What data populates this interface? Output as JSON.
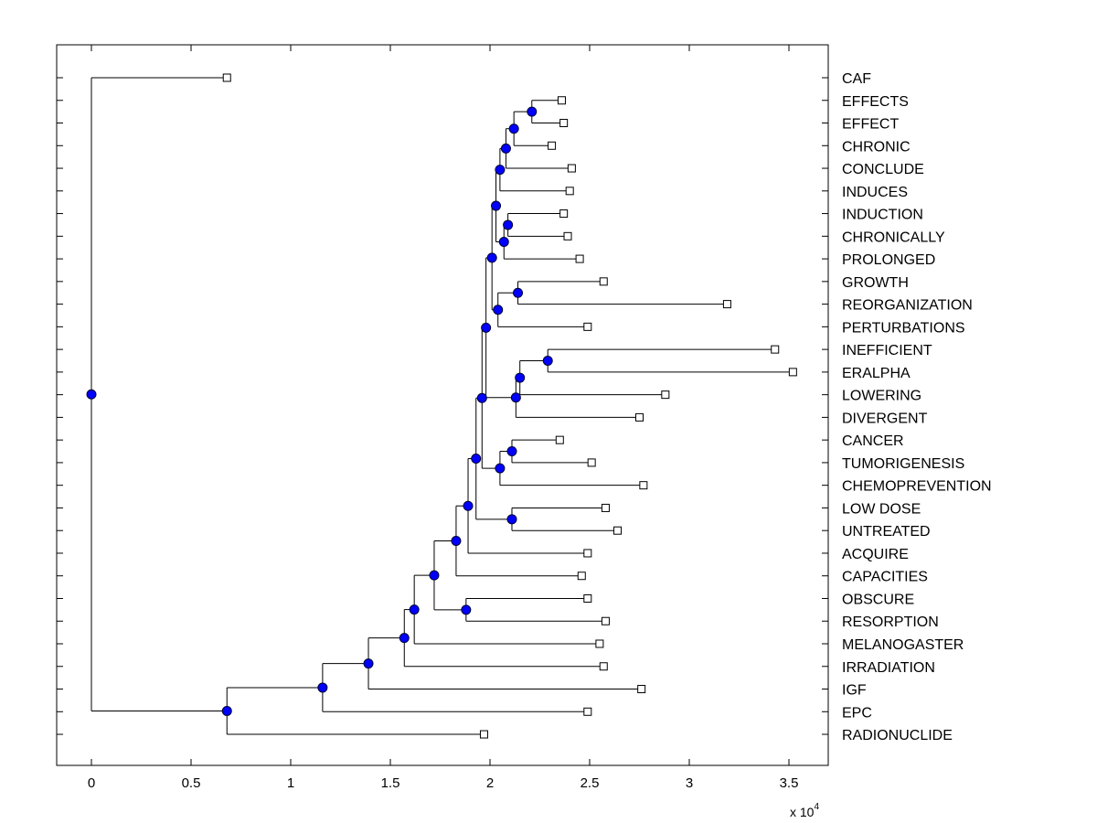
{
  "chart_data": {
    "type": "dendrogram",
    "orientation": "horizontal",
    "xlim": [
      -0.17,
      3.7
    ],
    "xticks": [
      "0",
      "0.5",
      "1",
      "1.5",
      "2",
      "2.5",
      "3",
      "3.5"
    ],
    "xtick_values": [
      0,
      0.5,
      1,
      1.5,
      2,
      2.5,
      3,
      3.5
    ],
    "x_multiplier_label": "x 10",
    "x_multiplier_exponent": "4",
    "leaves": [
      {
        "label": "CAF",
        "x": 0.68
      },
      {
        "label": "EFFECTS",
        "x": 2.36
      },
      {
        "label": "EFFECT",
        "x": 2.37
      },
      {
        "label": "CHRONIC",
        "x": 2.31
      },
      {
        "label": "CONCLUDE",
        "x": 2.41
      },
      {
        "label": "INDUCES",
        "x": 2.4
      },
      {
        "label": "INDUCTION",
        "x": 2.37
      },
      {
        "label": "CHRONICALLY",
        "x": 2.39
      },
      {
        "label": "PROLONGED",
        "x": 2.45
      },
      {
        "label": "GROWTH",
        "x": 2.57
      },
      {
        "label": "REORGANIZATION",
        "x": 3.19
      },
      {
        "label": "PERTURBATIONS",
        "x": 2.49
      },
      {
        "label": "INEFFICIENT",
        "x": 3.43
      },
      {
        "label": "ERALPHA",
        "x": 3.52
      },
      {
        "label": "LOWERING",
        "x": 2.88
      },
      {
        "label": "DIVERGENT",
        "x": 2.75
      },
      {
        "label": "CANCER",
        "x": 2.35
      },
      {
        "label": "TUMORIGENESIS",
        "x": 2.51
      },
      {
        "label": "CHEMOPREVENTION",
        "x": 2.77
      },
      {
        "label": "LOW DOSE",
        "x": 2.58
      },
      {
        "label": "UNTREATED",
        "x": 2.64
      },
      {
        "label": "ACQUIRE",
        "x": 2.49
      },
      {
        "label": "CAPACITIES",
        "x": 2.46
      },
      {
        "label": "OBSCURE",
        "x": 2.49
      },
      {
        "label": "RESORPTION",
        "x": 2.58
      },
      {
        "label": "MELANOGASTER",
        "x": 2.55
      },
      {
        "label": "IRRADIATION",
        "x": 2.57
      },
      {
        "label": "IGF",
        "x": 2.76
      },
      {
        "label": "EPC",
        "x": 2.49
      },
      {
        "label": "RADIONUCLIDE",
        "x": 1.97
      }
    ],
    "internal_nodes": [
      {
        "id": "n1",
        "x": 2.21,
        "children": [
          "L1",
          "L2"
        ]
      },
      {
        "id": "n2",
        "x": 2.12,
        "children": [
          "n1",
          "L3"
        ]
      },
      {
        "id": "n3",
        "x": 2.08,
        "children": [
          "n2",
          "L4"
        ]
      },
      {
        "id": "n4",
        "x": 2.05,
        "children": [
          "n3",
          "L5"
        ]
      },
      {
        "id": "n5",
        "x": 2.09,
        "children": [
          "L6",
          "L7"
        ]
      },
      {
        "id": "n6",
        "x": 2.07,
        "children": [
          "n5",
          "L8"
        ]
      },
      {
        "id": "n7",
        "x": 2.03,
        "children": [
          "n4",
          "n6"
        ]
      },
      {
        "id": "n8",
        "x": 2.14,
        "children": [
          "L9",
          "L10"
        ]
      },
      {
        "id": "n9",
        "x": 2.04,
        "children": [
          "n8",
          "L11"
        ]
      },
      {
        "id": "n10",
        "x": 2.01,
        "children": [
          "n7",
          "n9"
        ]
      },
      {
        "id": "n11",
        "x": 2.29,
        "children": [
          "L12",
          "L13"
        ]
      },
      {
        "id": "n12",
        "x": 2.15,
        "children": [
          "n11",
          "L14"
        ]
      },
      {
        "id": "n13",
        "x": 2.13,
        "children": [
          "n12",
          "L15"
        ]
      },
      {
        "id": "n14",
        "x": 1.98,
        "children": [
          "n10",
          "n13"
        ]
      },
      {
        "id": "n15",
        "x": 2.11,
        "children": [
          "L16",
          "L17"
        ]
      },
      {
        "id": "n16",
        "x": 2.05,
        "children": [
          "n15",
          "L18"
        ]
      },
      {
        "id": "n17",
        "x": 2.11,
        "children": [
          "L19",
          "L20"
        ]
      },
      {
        "id": "n18",
        "x": 1.96,
        "children": [
          "n14",
          "n16"
        ]
      },
      {
        "id": "n19",
        "x": 1.93,
        "children": [
          "n18",
          "n17"
        ]
      },
      {
        "id": "n20",
        "x": 1.89,
        "children": [
          "n19",
          "L21"
        ]
      },
      {
        "id": "n21",
        "x": 1.83,
        "children": [
          "n20",
          "L22"
        ]
      },
      {
        "id": "n22",
        "x": 1.88,
        "children": [
          "L23",
          "L24"
        ]
      },
      {
        "id": "n23",
        "x": 1.72,
        "children": [
          "n21",
          "n22"
        ]
      },
      {
        "id": "n24",
        "x": 1.62,
        "children": [
          "n23",
          "L25"
        ]
      },
      {
        "id": "n25",
        "x": 1.57,
        "children": [
          "n24",
          "L26"
        ]
      },
      {
        "id": "n26",
        "x": 1.39,
        "children": [
          "n25",
          "L27"
        ]
      },
      {
        "id": "n27",
        "x": 1.16,
        "children": [
          "n26",
          "L28"
        ]
      },
      {
        "id": "n28",
        "x": 0.68,
        "children": [
          "n27",
          "L29"
        ]
      },
      {
        "id": "n29",
        "x": 0.0,
        "children": [
          "L0",
          "n28"
        ]
      }
    ],
    "colors": {
      "node_fill": "#0000ff",
      "node_stroke": "#000033",
      "line": "#000000",
      "leaf_marker_fill": "#ffffff"
    }
  }
}
